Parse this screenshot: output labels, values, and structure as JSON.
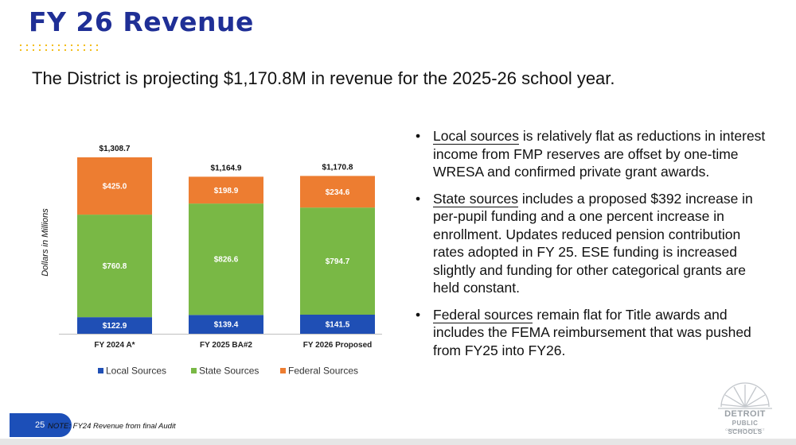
{
  "slide": {
    "title": "FY 26 Revenue",
    "subtitle": "The District is projecting $1,170.8M in revenue for the 2025-26 school year."
  },
  "chart_data": {
    "type": "bar",
    "stacked": true,
    "categories": [
      "FY 2024 A*",
      "FY 2025 BA#2",
      "FY 2026 Proposed"
    ],
    "series": [
      {
        "name": "Local Sources",
        "values": [
          122.9,
          139.4,
          141.5
        ],
        "labels": [
          "$122.9",
          "$139.4",
          "$141.5"
        ],
        "color": "#1f4fb5"
      },
      {
        "name": "State Sources",
        "values": [
          760.8,
          826.6,
          794.7
        ],
        "labels": [
          "$760.8",
          "$826.6",
          "$794.7"
        ],
        "color": "#79b845"
      },
      {
        "name": "Federal Sources",
        "values": [
          425.0,
          198.9,
          234.6
        ],
        "labels": [
          "$425.0",
          "$198.9",
          "$234.6"
        ],
        "color": "#ed7d31"
      }
    ],
    "totals": [
      "$1,308.7",
      "$1,164.9",
      "$1,170.8"
    ],
    "ylabel": "Dollars in Millions",
    "ylim": [
      0,
      1308.7
    ],
    "legend_position": "bottom",
    "grid": false
  },
  "bullets": [
    {
      "lead": "Local sources",
      "text": " is relatively flat as reductions in interest income from FMP reserves are offset by one-time WRESA and confirmed private grant awards."
    },
    {
      "lead": "State sources",
      "text": " includes a proposed $392 increase in per-pupil funding and a one percent increase in enrollment. Updates reduced pension contribution rates adopted in FY 25. ESE funding is increased slightly and funding for other categorical grants are held constant."
    },
    {
      "lead": "Federal sources",
      "text": " remain flat for Title awards and includes the FEMA reimbursement that was pushed from FY25 into FY26."
    }
  ],
  "footer": {
    "page_number": "25",
    "note": "NOTE: FY24 Revenue from final Audit"
  },
  "logo": {
    "line1": "DETROIT",
    "line2": "PUBLIC SCHOOLS",
    "line3": "COMMUNITY DISTRICT"
  },
  "colors": {
    "title": "#1f2f96",
    "dots": "#f2b705",
    "pill": "#1c4fb8"
  }
}
